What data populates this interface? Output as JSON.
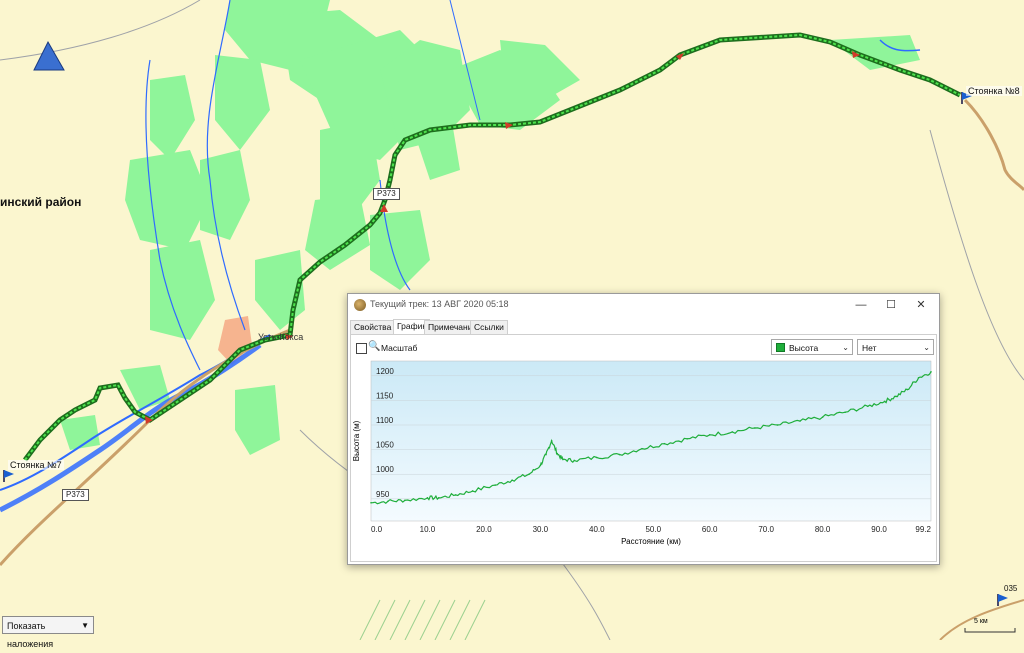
{
  "map": {
    "district_label": "инский район",
    "stops": {
      "start": "Стоянка №7",
      "end": "Стоянка №8"
    },
    "waypoint": "035",
    "road_labels": [
      "Р373",
      "Р373"
    ],
    "village": "Усть-Кокса",
    "overlay_select": "Показать наложения",
    "scale": "5 км",
    "colors": {
      "background": "#fbf6cf",
      "forest": "#8ff59a",
      "river": "#2f6bff",
      "track": "#1d8a1d",
      "road": "#caa06a"
    }
  },
  "dialog": {
    "title": "Текущий трек: 13 АВГ 2020 05:18",
    "tabs": [
      "Свойства",
      "График",
      "Примечания",
      "Ссылки"
    ],
    "active_tab": "График",
    "scale_checkbox_label": "Масштаб",
    "series_select": "Высота",
    "filter_select": "Нет"
  },
  "chart_data": {
    "type": "line",
    "xlabel": "Расстояние (км)",
    "ylabel": "Высота (м)",
    "xlim": [
      0,
      99.2
    ],
    "ylim": [
      905,
      1230
    ],
    "xticks": [
      "0.0",
      "10.0",
      "20.0",
      "30.0",
      "40.0",
      "50.0",
      "60.0",
      "70.0",
      "80.0",
      "90.0",
      "99.2"
    ],
    "yticks": [
      950,
      1000,
      1050,
      1100,
      1150,
      1200
    ],
    "grid": true,
    "series": [
      {
        "name": "Высота",
        "color": "#1fae3b",
        "x": [
          0,
          3,
          6,
          10,
          12,
          15,
          18,
          22,
          25,
          28,
          30,
          31,
          32,
          33,
          34,
          36,
          40,
          44,
          48,
          52,
          56,
          60,
          64,
          68,
          72,
          76,
          80,
          84,
          88,
          91,
          93,
          95,
          97,
          99.2
        ],
        "y": [
          942,
          945,
          947,
          952,
          952,
          958,
          966,
          978,
          988,
          1000,
          1018,
          1040,
          1068,
          1042,
          1030,
          1028,
          1034,
          1040,
          1052,
          1062,
          1072,
          1080,
          1086,
          1094,
          1100,
          1108,
          1116,
          1126,
          1138,
          1148,
          1158,
          1172,
          1196,
          1208
        ]
      }
    ]
  }
}
